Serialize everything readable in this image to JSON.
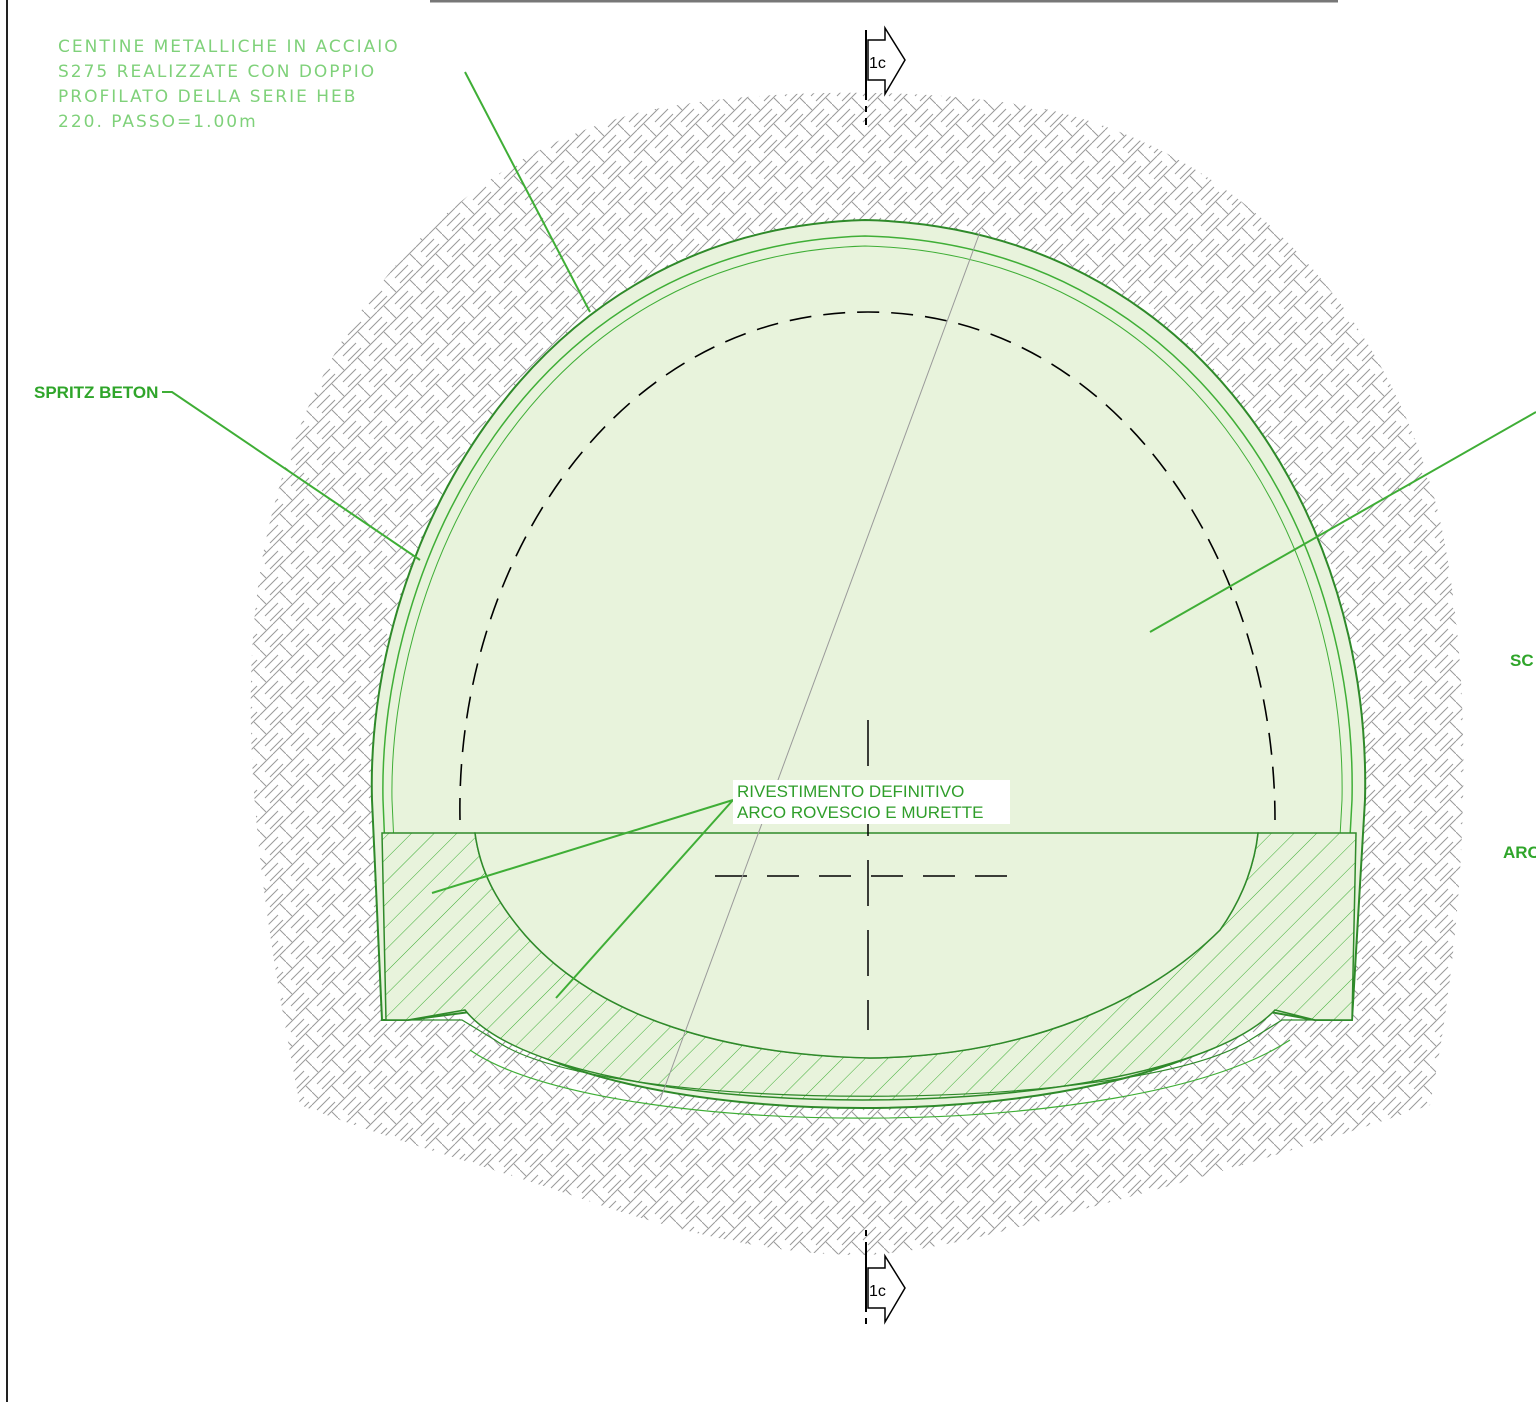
{
  "drawing": {
    "labels": {
      "centine_line1": "CENTINE METALLICHE IN ACCIAIO",
      "centine_line2": "S275 REALIZZATE CON DOPPIO",
      "centine_line3": "PROFILATO DELLA SERIE HEB",
      "centine_line4": "220. PASSO=1.00m",
      "spritz": "SPRITZ BETON",
      "rivestimento_line1": "RIVESTIMENTO DEFINITIVO",
      "rivestimento_line2": "ARCO ROVESCIO E MURETTE",
      "right_label_1": "SC",
      "right_label_2": "ARC"
    },
    "section_marker": {
      "top": "1c",
      "bottom": "1c"
    },
    "colors": {
      "section_fill": "#e8f3dc",
      "line_green": "#3fae36",
      "label_green": "#2fa52a",
      "hatch_gray": "#999999"
    }
  }
}
